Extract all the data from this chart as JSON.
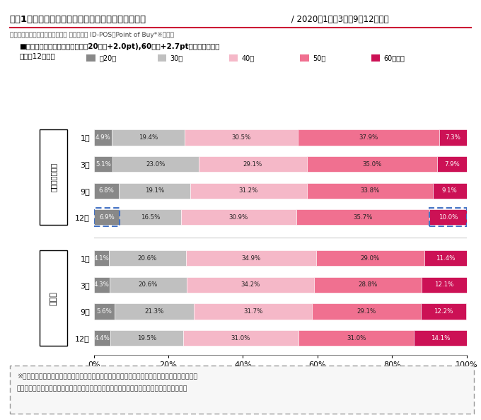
{
  "title_bold": "図表1　「まいばすけっと」と「イオン」の利用者層",
  "title_light": " / 2020年1月・3月・9・12月推移",
  "subtitle": "ソフトブレーン・フィールド調べ マルチプル ID-POS「Point of Buy*※」より",
  "annotation_line1": "■まいばすけっと、コロナ禍で～20代（+2.0pt),60代（+2.7pt）利用が拡大。",
  "annotation_line2": "１月と12月比較",
  "legend_labels": [
    "～20代",
    "30代",
    "40代",
    "50代",
    "60代以上"
  ],
  "colors": [
    "#888888",
    "#c0c0c0",
    "#f5b8c8",
    "#f07090",
    "#cc1155"
  ],
  "maibasket_label": "まいばすけっと",
  "ion_label": "イオン",
  "months": [
    "1月",
    "3月",
    "9月",
    "12月"
  ],
  "maibasket_data": [
    [
      4.9,
      19.4,
      30.5,
      37.9,
      7.3
    ],
    [
      5.1,
      23.0,
      29.1,
      35.0,
      7.9
    ],
    [
      6.8,
      19.1,
      31.2,
      33.8,
      9.1
    ],
    [
      6.9,
      16.5,
      30.9,
      35.7,
      10.0
    ]
  ],
  "ion_data": [
    [
      4.1,
      20.6,
      34.9,
      29.0,
      11.4
    ],
    [
      4.3,
      20.6,
      34.2,
      28.8,
      12.1
    ],
    [
      5.6,
      21.3,
      31.7,
      29.1,
      12.2
    ],
    [
      4.4,
      19.5,
      31.0,
      31.0,
      14.1
    ]
  ],
  "footnote_line1": "※全国の消費者から実際に購入／利用したレシートを収集し、ブランドカテゴリや利用サービス、",
  "footnote_line2": "実際の飲食店ごとのレシートを通して集計したマルチプルリテール購買データのデータベース",
  "background_color": "#ffffff",
  "highlight_color": "#4472C4",
  "title_red_line_color": "#cc0033"
}
